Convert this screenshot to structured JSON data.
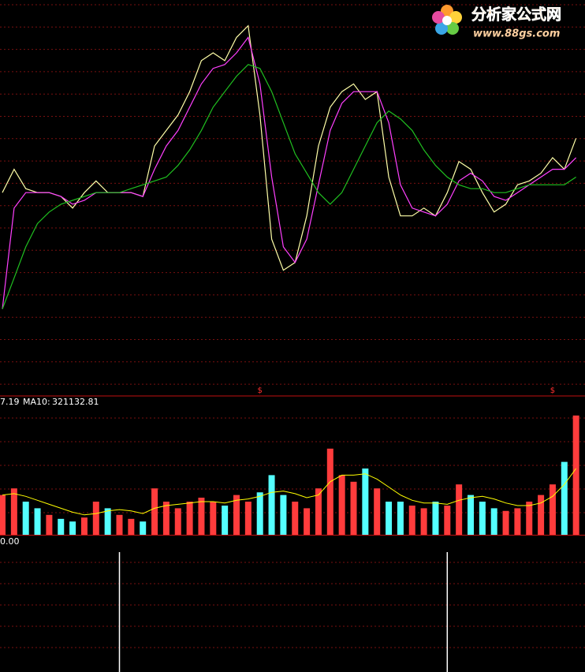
{
  "chart_data": [
    {
      "type": "line",
      "series": [
        {
          "color": "#ffffa8",
          "values": [
            52,
            58,
            53,
            52,
            52,
            51,
            48,
            52,
            55,
            52,
            52,
            52,
            51,
            64,
            68,
            72,
            78,
            86,
            88,
            86,
            92,
            95,
            72,
            40,
            32,
            34,
            46,
            64,
            74,
            78,
            80,
            76,
            78,
            56,
            46,
            46,
            48,
            46,
            52,
            60,
            58,
            52,
            47,
            49,
            54,
            55,
            57,
            61,
            58,
            66
          ]
        },
        {
          "color": "#ff40ff",
          "values": [
            22,
            48,
            52,
            52,
            52,
            51,
            49,
            50,
            52,
            52,
            52,
            52,
            51,
            58,
            64,
            68,
            74,
            80,
            84,
            85,
            88,
            92,
            80,
            56,
            38,
            34,
            40,
            54,
            68,
            75,
            78,
            78,
            78,
            70,
            54,
            48,
            47,
            46,
            49,
            55,
            57,
            55,
            51,
            50,
            52,
            54,
            56,
            58,
            58,
            61
          ]
        },
        {
          "color": "#20c020",
          "values": [
            22,
            30,
            38,
            44,
            47,
            49,
            50,
            51,
            52,
            52,
            52,
            53,
            54,
            55,
            56,
            59,
            63,
            68,
            74,
            78,
            82,
            85,
            84,
            78,
            70,
            62,
            57,
            52,
            49,
            52,
            58,
            64,
            70,
            73,
            71,
            68,
            63,
            59,
            56,
            54,
            53,
            53,
            52,
            52,
            53,
            54,
            54,
            54,
            54,
            56
          ]
        }
      ],
      "ylim": [
        0,
        100
      ],
      "signals": {
        "color": "#ff3030",
        "marks": [
          {
            "index": 22,
            "label": "$"
          },
          {
            "index": 47,
            "label": "$"
          }
        ]
      }
    },
    {
      "type": "bar",
      "readout": "7.19",
      "ma_label": "MA10:",
      "ma_value": 321132.81,
      "up_color": "#ff3c3c",
      "down_color": "#54ffff",
      "values": [
        300000,
        350000,
        250000,
        200000,
        150000,
        120000,
        100000,
        130000,
        250000,
        200000,
        150000,
        120000,
        100000,
        350000,
        250000,
        200000,
        250000,
        280000,
        250000,
        220000,
        300000,
        250000,
        320000,
        450000,
        300000,
        250000,
        200000,
        350000,
        650000,
        450000,
        400000,
        500000,
        350000,
        250000,
        250000,
        220000,
        200000,
        250000,
        220000,
        380000,
        300000,
        250000,
        200000,
        180000,
        200000,
        250000,
        300000,
        380000,
        550000,
        900000
      ],
      "series": [
        {
          "color": "#ffff00",
          "values": [
            300000,
            310000,
            290000,
            260000,
            230000,
            200000,
            170000,
            150000,
            160000,
            180000,
            190000,
            180000,
            160000,
            200000,
            220000,
            230000,
            240000,
            250000,
            250000,
            240000,
            260000,
            270000,
            290000,
            320000,
            330000,
            310000,
            280000,
            300000,
            400000,
            450000,
            450000,
            460000,
            420000,
            360000,
            300000,
            260000,
            240000,
            240000,
            230000,
            260000,
            280000,
            290000,
            270000,
            240000,
            220000,
            220000,
            240000,
            290000,
            380000,
            500000
          ]
        }
      ],
      "ylim": [
        0,
        1000000
      ]
    },
    {
      "type": "bar",
      "readout": "0.00",
      "color": "#ffffff",
      "values": [
        0,
        0,
        0,
        0,
        0,
        0,
        0,
        0,
        0,
        0,
        1,
        0,
        0,
        0,
        0,
        0,
        0,
        0,
        0,
        0,
        0,
        0,
        0,
        0,
        0,
        0,
        0,
        0,
        0,
        0,
        0,
        0,
        0,
        0,
        0,
        0,
        0,
        0,
        1,
        0,
        0,
        0,
        0,
        0,
        0,
        0,
        0,
        0,
        0,
        0
      ],
      "ylim": [
        0,
        1
      ]
    }
  ],
  "watermark": {
    "title": "分析家公式网",
    "url": "www.88gs.com"
  }
}
